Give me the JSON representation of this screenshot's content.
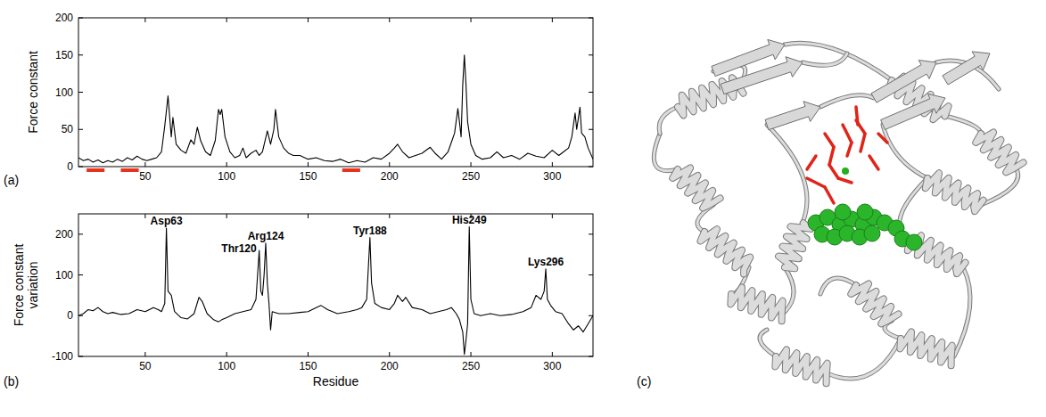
{
  "chart_data": [
    {
      "type": "line",
      "panel": "(a)",
      "y_label": "Force constant",
      "xlim": [
        9,
        325
      ],
      "ylim": [
        0,
        200
      ],
      "xticks": [
        50,
        100,
        150,
        200,
        250,
        300
      ],
      "yticks": [
        0,
        50,
        100,
        150,
        200
      ],
      "x": [
        9,
        12,
        15,
        18,
        21,
        24,
        27,
        30,
        33,
        36,
        39,
        42,
        45,
        48,
        51,
        54,
        57,
        60,
        62,
        64,
        66,
        67,
        69,
        72,
        75,
        78,
        80,
        82,
        84,
        87,
        90,
        93,
        95,
        96,
        97,
        99,
        102,
        105,
        108,
        110,
        112,
        115,
        118,
        120,
        122,
        125,
        127,
        129,
        130,
        132,
        135,
        138,
        141,
        145,
        150,
        155,
        160,
        165,
        170,
        175,
        180,
        185,
        190,
        195,
        200,
        203,
        205,
        208,
        212,
        216,
        220,
        225,
        228,
        232,
        236,
        240,
        242,
        243,
        244,
        245,
        246,
        247,
        248,
        250,
        253,
        257,
        262,
        266,
        270,
        275,
        280,
        285,
        290,
        295,
        300,
        304,
        307,
        310,
        312,
        314,
        315,
        317,
        318,
        320,
        322,
        325
      ],
      "series": [
        {
          "color": "#000000",
          "values": [
            12,
            8,
            10,
            6,
            9,
            5,
            8,
            6,
            10,
            7,
            12,
            9,
            14,
            10,
            8,
            10,
            12,
            20,
            55,
            95,
            40,
            66,
            30,
            22,
            18,
            36,
            30,
            53,
            35,
            20,
            15,
            35,
            77,
            70,
            77,
            40,
            20,
            12,
            15,
            25,
            12,
            18,
            22,
            15,
            20,
            48,
            30,
            50,
            77,
            40,
            25,
            18,
            15,
            15,
            10,
            12,
            8,
            7,
            10,
            5,
            8,
            6,
            12,
            10,
            18,
            25,
            30,
            20,
            12,
            15,
            18,
            26,
            18,
            10,
            20,
            45,
            78,
            60,
            40,
            110,
            150,
            110,
            60,
            30,
            15,
            10,
            12,
            20,
            12,
            15,
            10,
            18,
            14,
            12,
            22,
            15,
            20,
            25,
            40,
            72,
            50,
            80,
            45,
            40,
            25,
            10
          ]
        }
      ],
      "highlights": {
        "color": "#e8321e",
        "ranges": [
          [
            14,
            25
          ],
          [
            35,
            46
          ],
          [
            171,
            182
          ]
        ]
      }
    },
    {
      "type": "line",
      "panel": "(b)",
      "x_label": "Residue",
      "y_label": "Force constant variation",
      "xlim": [
        9,
        325
      ],
      "ylim": [
        -100,
        250
      ],
      "xticks": [
        50,
        100,
        150,
        200,
        250,
        300
      ],
      "yticks": [
        -100,
        0,
        100,
        200
      ],
      "x": [
        9,
        12,
        15,
        18,
        21,
        24,
        27,
        30,
        35,
        40,
        45,
        50,
        55,
        58,
        60,
        62,
        63,
        64,
        66,
        68,
        72,
        76,
        80,
        83,
        85,
        88,
        92,
        95,
        97,
        100,
        105,
        110,
        115,
        118,
        120,
        121,
        122,
        123,
        124,
        125,
        126,
        127,
        128,
        132,
        138,
        145,
        150,
        155,
        158,
        162,
        168,
        175,
        180,
        183,
        186,
        188,
        189,
        191,
        195,
        200,
        203,
        205,
        208,
        210,
        214,
        220,
        225,
        230,
        235,
        238,
        241,
        243,
        245,
        246,
        247,
        248,
        249,
        250,
        252,
        256,
        262,
        268,
        275,
        282,
        287,
        290,
        293,
        295,
        296,
        297,
        299,
        302,
        306,
        310,
        313,
        316,
        319,
        322,
        325
      ],
      "series": [
        {
          "color": "#000000",
          "values": [
            0,
            5,
            15,
            12,
            20,
            10,
            5,
            8,
            3,
            5,
            15,
            10,
            20,
            15,
            10,
            30,
            215,
            60,
            50,
            10,
            -5,
            -8,
            5,
            45,
            35,
            5,
            -10,
            -15,
            -10,
            -5,
            5,
            10,
            15,
            40,
            160,
            60,
            50,
            100,
            178,
            80,
            30,
            -35,
            10,
            5,
            5,
            8,
            10,
            20,
            25,
            15,
            5,
            10,
            15,
            20,
            40,
            192,
            80,
            30,
            20,
            15,
            30,
            50,
            35,
            45,
            20,
            15,
            5,
            10,
            15,
            20,
            5,
            -10,
            -40,
            -95,
            -60,
            -20,
            218,
            40,
            5,
            0,
            5,
            0,
            3,
            10,
            20,
            50,
            40,
            60,
            115,
            40,
            25,
            10,
            5,
            -20,
            -35,
            -25,
            -40,
            -20,
            0
          ]
        }
      ],
      "annotations": [
        {
          "text": "Asp63",
          "x": 63,
          "y": 215
        },
        {
          "text": "Thr120",
          "x": 120,
          "y": 160
        },
        {
          "text": "Arg124",
          "x": 124,
          "y": 178
        },
        {
          "text": "Tyr188",
          "x": 188,
          "y": 192
        },
        {
          "text": "His249",
          "x": 249,
          "y": 218
        },
        {
          "text": "Lys296",
          "x": 296,
          "y": 115
        }
      ]
    }
  ],
  "image_panel": {
    "label": "(c)"
  }
}
